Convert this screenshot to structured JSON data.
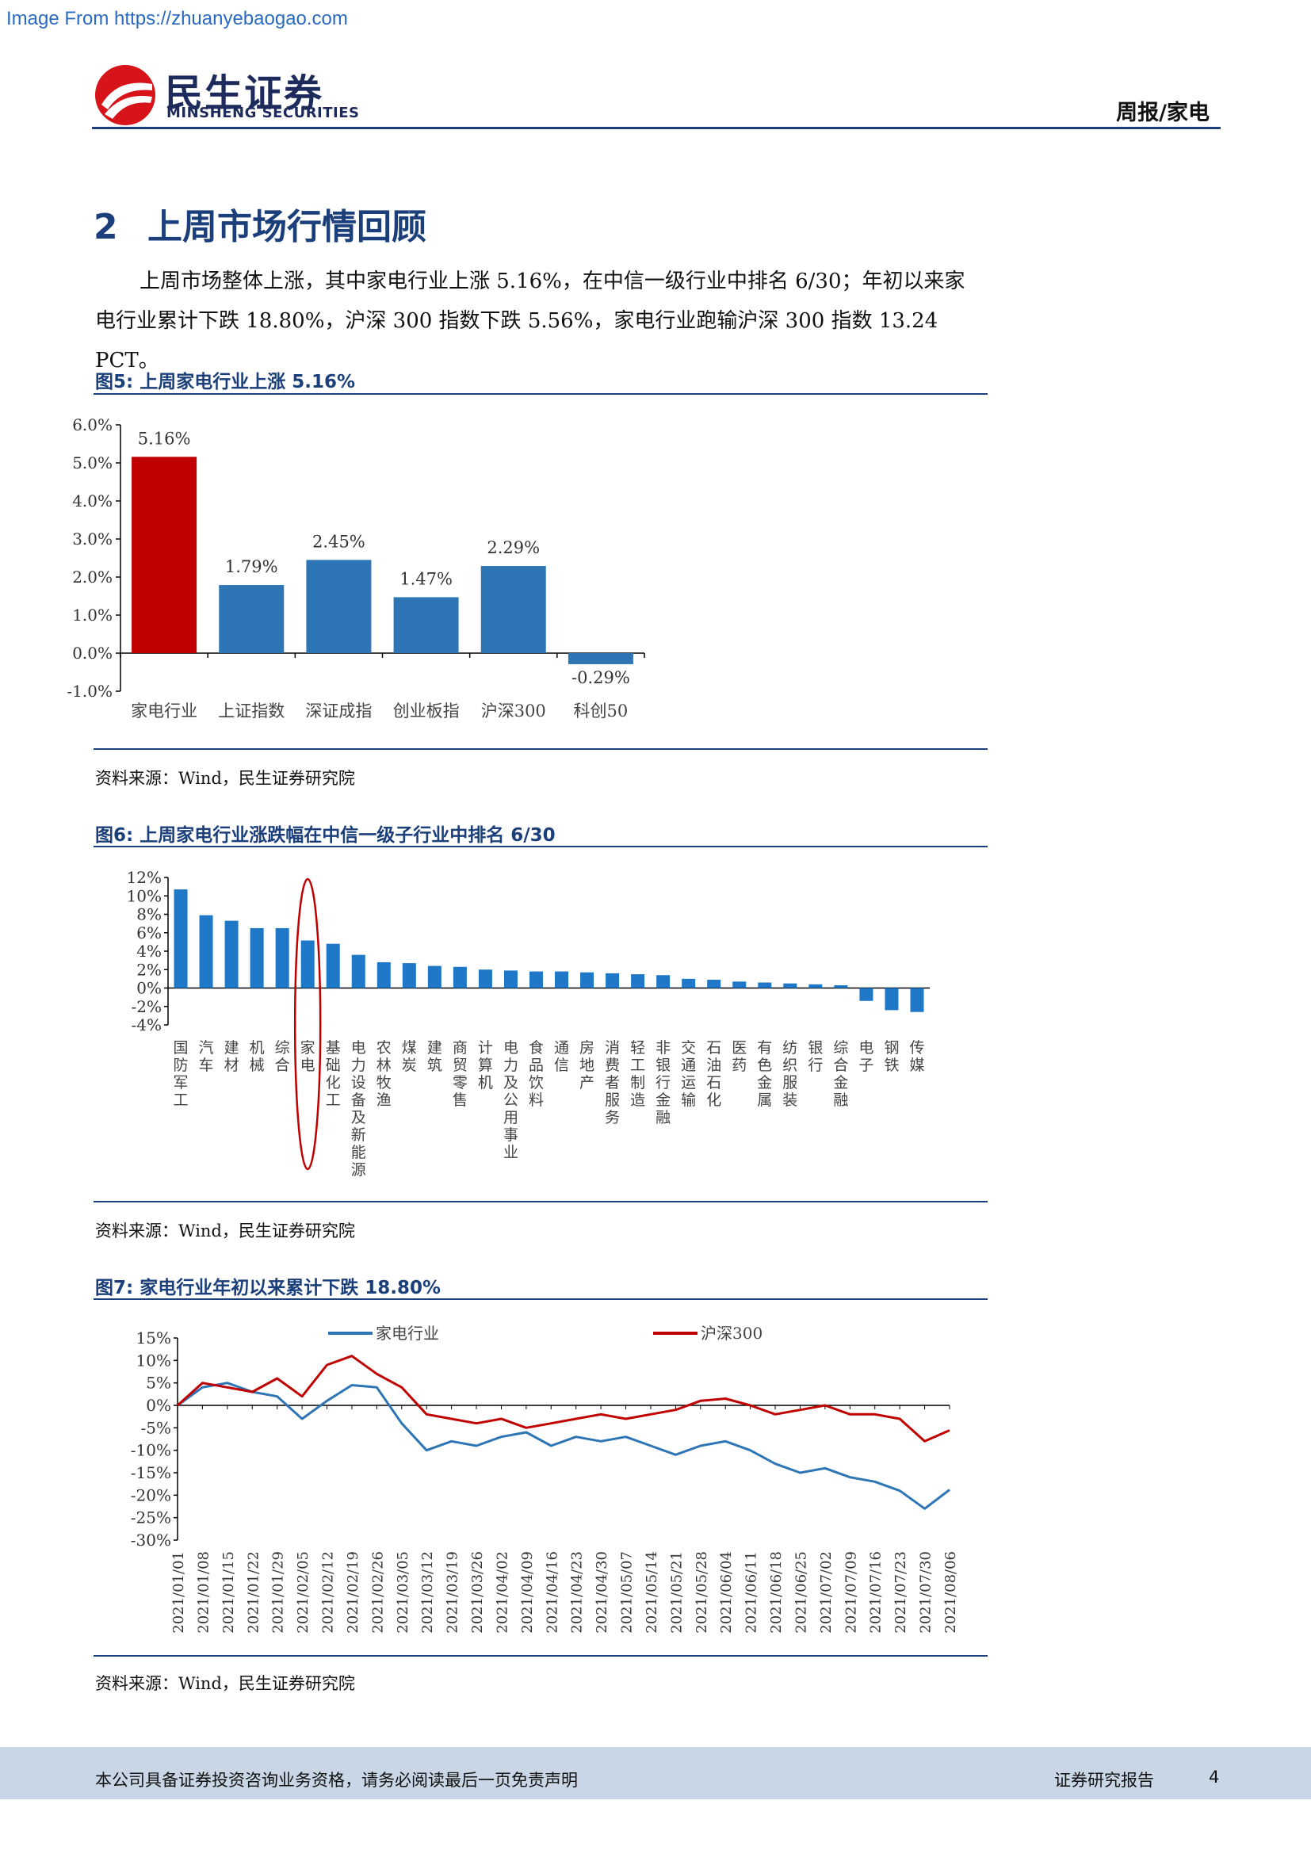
{
  "watermark": "Image From https://zhuanyebaogao.com",
  "header": {
    "brand_cn": "民生证券",
    "brand_en": "MINSHENG SECURITIES",
    "right_label": "周报/家电",
    "brand_color": "#d7141a"
  },
  "section": {
    "number": "2",
    "title": "上周市场行情回顾"
  },
  "paragraph": {
    "line1": "上周市场整体上涨，其中家电行业上涨 5.16%，在中信一级行业中排名 6/30；年初以来家",
    "line2": "电行业累计下跌 18.80%，沪深 300 指数下跌 5.56%，家电行业跑输沪深 300 指数 13.24 PCT。"
  },
  "figures": {
    "fig5": {
      "title": "图5:  上周家电行业上涨 5.16%",
      "source": "资料来源：Wind，民生证券研究院"
    },
    "fig6": {
      "title": "图6:  上周家电行业涨跌幅在中信一级子行业中排名 6/30",
      "source": "资料来源：Wind，民生证券研究院"
    },
    "fig7": {
      "title": "图7:  家电行业年初以来累计下跌 18.80%",
      "source": "资料来源：Wind，民生证券研究院"
    }
  },
  "chart_data": [
    {
      "type": "bar",
      "categories": [
        "家电行业",
        "上证指数",
        "深证成指",
        "创业板指",
        "沪深300",
        "科创50"
      ],
      "values": [
        5.16,
        1.79,
        2.45,
        1.47,
        2.29,
        -0.29
      ],
      "value_labels": [
        "5.16%",
        "1.79%",
        "2.45%",
        "1.47%",
        "2.29%",
        "-0.29%"
      ],
      "ylim": [
        -1,
        6
      ],
      "yticks": [
        "-1.0%",
        "0.0%",
        "1.0%",
        "2.0%",
        "3.0%",
        "4.0%",
        "5.0%",
        "6.0%"
      ],
      "colors": {
        "highlight": "#c00000",
        "normal": "#2e75b6"
      }
    },
    {
      "type": "bar",
      "categories": [
        "国防军工",
        "汽车",
        "建材",
        "机械",
        "综合",
        "家电",
        "基础化工",
        "电力设备及新能源",
        "农林牧渔",
        "煤炭",
        "建筑",
        "商贸零售",
        "计算机",
        "电力及公用事业",
        "食品饮料",
        "通信",
        "房地产",
        "消费者服务",
        "轻工制造",
        "非银行金融",
        "交通运输",
        "石油石化",
        "医药",
        "有色金属",
        "纺织服装",
        "银行",
        "综合金融",
        "电子",
        "钢铁",
        "传媒"
      ],
      "values": [
        10.7,
        7.9,
        7.3,
        6.5,
        6.5,
        5.16,
        4.8,
        3.6,
        2.8,
        2.7,
        2.4,
        2.3,
        2.0,
        1.9,
        1.8,
        1.8,
        1.7,
        1.6,
        1.5,
        1.4,
        1.0,
        0.9,
        0.7,
        0.6,
        0.5,
        0.4,
        0.3,
        -1.4,
        -2.4,
        -2.6
      ],
      "ylim": [
        -4,
        12
      ],
      "yticks": [
        "-4%",
        "-2%",
        "0%",
        "2%",
        "4%",
        "6%",
        "8%",
        "10%",
        "12%"
      ],
      "highlight": "家电",
      "colors": {
        "bar": "#1f77c8",
        "circle": "#c00000"
      }
    },
    {
      "type": "line",
      "x_ticks": [
        "2021/01/01",
        "2021/01/08",
        "2021/01/15",
        "2021/01/22",
        "2021/01/29",
        "2021/02/05",
        "2021/02/12",
        "2021/02/19",
        "2021/02/26",
        "2021/03/05",
        "2021/03/12",
        "2021/03/19",
        "2021/03/26",
        "2021/04/02",
        "2021/04/09",
        "2021/04/16",
        "2021/04/23",
        "2021/04/30",
        "2021/05/07",
        "2021/05/14",
        "2021/05/21",
        "2021/05/28",
        "2021/06/04",
        "2021/06/11",
        "2021/06/18",
        "2021/06/25",
        "2021/07/02",
        "2021/07/09",
        "2021/07/16",
        "2021/07/23",
        "2021/07/30",
        "2021/08/06"
      ],
      "ylim": [
        -30,
        15
      ],
      "yticks": [
        "-30%",
        "-25%",
        "-20%",
        "-15%",
        "-10%",
        "-5%",
        "0%",
        "5%",
        "10%",
        "15%"
      ],
      "series": [
        {
          "name": "家电行业",
          "color": "#2e75b6",
          "values": [
            0,
            4,
            5,
            3,
            2,
            -3,
            1,
            4.5,
            4,
            -4,
            -10,
            -8,
            -9,
            -7,
            -6,
            -9,
            -7,
            -8,
            -7,
            -9,
            -11,
            -9,
            -8,
            -10,
            -13,
            -15,
            -14,
            -16,
            -17,
            -19,
            -23,
            -18.8
          ]
        },
        {
          "name": "沪深300",
          "color": "#c00000",
          "values": [
            0,
            5,
            4,
            3,
            6,
            2,
            9,
            11,
            7,
            4,
            -2,
            -3,
            -4,
            -3,
            -5,
            -4,
            -3,
            -2,
            -3,
            -2,
            -1,
            1,
            1.5,
            0,
            -2,
            -1,
            0,
            -2,
            -2,
            -3,
            -8,
            -5.56
          ]
        }
      ]
    }
  ],
  "footer": {
    "disclaimer": "本公司具备证券投资咨询业务资格，请务必阅读最后一页免责声明",
    "report_type": "证券研究报告",
    "page": "4"
  }
}
